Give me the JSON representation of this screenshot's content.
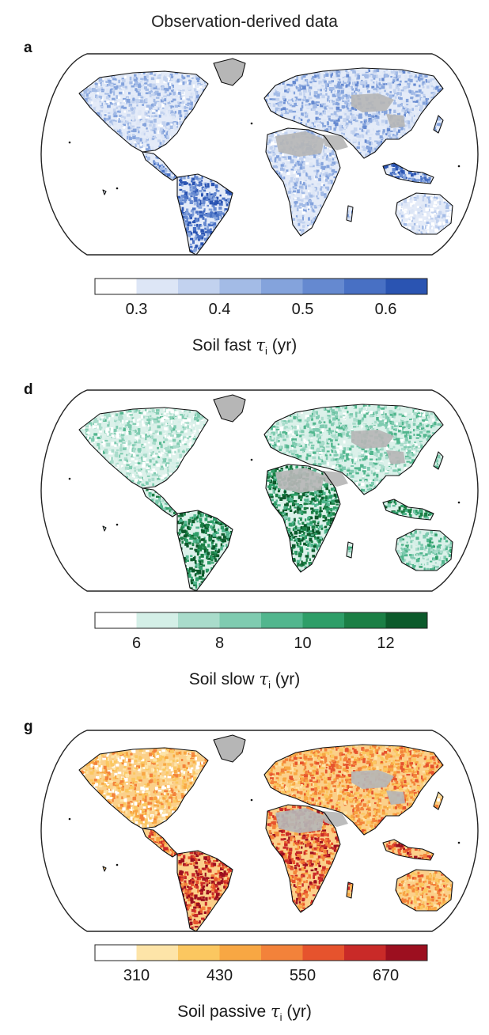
{
  "figure_title": "Observation-derived data",
  "panels": [
    {
      "letter": "a",
      "map_name": "soil-fast-map",
      "palette": [
        "#ffffff",
        "#dde6f6",
        "#c2d2ef",
        "#a3bbe6",
        "#84a3dc",
        "#6589d0",
        "#4870c4",
        "#2a54b2"
      ],
      "land_base": "#e4ebf8",
      "accent": "#3b64c0",
      "colorbar": {
        "ticks": [
          0.3,
          0.4,
          0.5,
          0.6
        ],
        "tick_labels": [
          "0.3",
          "0.4",
          "0.5",
          "0.6"
        ],
        "range": [
          0.25,
          0.65
        ],
        "label_main": "Soil fast",
        "label_symbol": "τ",
        "label_sub": "i",
        "label_unit": "(yr)"
      }
    },
    {
      "letter": "d",
      "map_name": "soil-slow-map",
      "palette": [
        "#ffffff",
        "#d4efe7",
        "#a9dccb",
        "#7fcbb0",
        "#52b68e",
        "#2e9e68",
        "#1b7f45",
        "#0c5a2b"
      ],
      "land_base": "#dcf1ea",
      "accent": "#1e8a4c",
      "colorbar": {
        "ticks": [
          6,
          8,
          10,
          12
        ],
        "tick_labels": [
          "6",
          "8",
          "10",
          "12"
        ],
        "range": [
          5,
          13
        ],
        "label_main": "Soil slow",
        "label_symbol": "τ",
        "label_sub": "i",
        "label_unit": "(yr)"
      }
    },
    {
      "letter": "g",
      "map_name": "soil-passive-map",
      "palette": [
        "#ffffff",
        "#fde4a8",
        "#fbc760",
        "#f8a743",
        "#f3823a",
        "#e6532d",
        "#c92a28",
        "#9c0f1f"
      ],
      "land_base": "#fbd08a",
      "accent": "#e3542b",
      "colorbar": {
        "ticks": [
          310,
          430,
          550,
          670
        ],
        "tick_labels": [
          "310",
          "430",
          "550",
          "670"
        ],
        "range": [
          250,
          730
        ],
        "label_main": "Soil passive",
        "label_symbol": "τ",
        "label_sub": "i",
        "label_unit": "(yr)"
      }
    }
  ],
  "no_data_color": "#b6b6b6"
}
